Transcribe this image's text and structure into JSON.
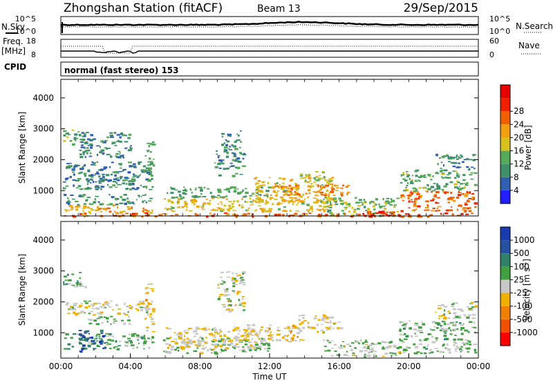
{
  "header": {
    "station": "Zhongshan Station (fitACF)",
    "beam": "Beam 13",
    "date": "29/Sep/2015"
  },
  "noise_panel": {
    "left_label": "N.Sky",
    "right_label": "N.Search",
    "left_ticks": [
      "10^5",
      "10^0"
    ],
    "right_ticks": [
      "10^5",
      "10^0"
    ]
  },
  "freq_panel": {
    "left_label_1": "Freq.",
    "left_label_2": "[MHz]",
    "right_label": "Nave",
    "left_ticks": [
      "18",
      "8"
    ],
    "right_ticks": [
      "60",
      "0"
    ]
  },
  "cpid": {
    "label": "CPID",
    "text": "normal (fast stereo) 153"
  },
  "colors": {
    "power": [
      "#1f1fff",
      "#2f5fb0",
      "#3f8f6a",
      "#56a85a",
      "#d8c020",
      "#f0a010",
      "#f06000",
      "#f02000",
      "#e80000"
    ],
    "velocity": [
      "#ff0000",
      "#f05000",
      "#f08000",
      "#f0b000",
      "#c8c8c8",
      "#40a040",
      "#30806a",
      "#2850a0",
      "#1a3ab0"
    ]
  },
  "chart_data": [
    {
      "type": "heatmap",
      "name": "Power",
      "ylabel": "Slant Range [km]",
      "xlabel": "",
      "yticks": [
        "1000",
        "2000",
        "3000",
        "4000"
      ],
      "ylim": [
        180,
        4600
      ],
      "xlim": [
        0,
        24
      ],
      "colorbar": {
        "label": "Power [dB]",
        "ticks": [
          "4",
          "8",
          "12",
          "16",
          "20",
          "24",
          "28"
        ],
        "range": [
          0,
          30
        ]
      },
      "blobs": [
        {
          "x0": 0.1,
          "x1": 5.3,
          "y0": 300,
          "y1": 560,
          "v": 18
        },
        {
          "x0": 0.1,
          "x1": 5.2,
          "y0": 560,
          "y1": 900,
          "v": 9
        },
        {
          "x0": 0.1,
          "x1": 5.0,
          "y0": 1050,
          "y1": 1950,
          "v": 8
        },
        {
          "x0": 0.1,
          "x1": 1.5,
          "y0": 2500,
          "y1": 3000,
          "v": 11
        },
        {
          "x0": 1.0,
          "x1": 4.0,
          "y0": 2100,
          "y1": 2900,
          "v": 8
        },
        {
          "x0": 1.5,
          "x1": 4.2,
          "y0": 1300,
          "y1": 1500,
          "v": 9
        },
        {
          "x0": 4.8,
          "x1": 5.3,
          "y0": 1000,
          "y1": 2700,
          "v": 10
        },
        {
          "x0": 5.8,
          "x1": 15.5,
          "y0": 350,
          "y1": 800,
          "v": 16
        },
        {
          "x0": 6.0,
          "x1": 12.0,
          "y0": 800,
          "y1": 1150,
          "v": 10
        },
        {
          "x0": 8.8,
          "x1": 10.5,
          "y0": 1500,
          "y1": 2300,
          "v": 8
        },
        {
          "x0": 9.2,
          "x1": 10.3,
          "y0": 2300,
          "y1": 3000,
          "v": 8
        },
        {
          "x0": 11.0,
          "x1": 15.8,
          "y0": 650,
          "y1": 1450,
          "v": 16
        },
        {
          "x0": 13.5,
          "x1": 15.5,
          "y0": 1350,
          "y1": 1650,
          "v": 14
        },
        {
          "x0": 12.0,
          "x1": 16.5,
          "y0": 850,
          "y1": 1200,
          "v": 20
        },
        {
          "x0": 15.0,
          "x1": 19.3,
          "y0": 200,
          "y1": 800,
          "v": 12
        },
        {
          "x0": 17.0,
          "x1": 19.2,
          "y0": 200,
          "y1": 400,
          "v": 24
        },
        {
          "x0": 19.4,
          "x1": 23.8,
          "y0": 350,
          "y1": 1000,
          "v": 22
        },
        {
          "x0": 19.5,
          "x1": 23.8,
          "y0": 1000,
          "y1": 1700,
          "v": 11
        },
        {
          "x0": 21.5,
          "x1": 23.8,
          "y0": 1700,
          "y1": 2200,
          "v": 8
        },
        {
          "x0": 0.1,
          "x1": 23.8,
          "y0": 180,
          "y1": 300,
          "v": 22
        }
      ]
    },
    {
      "type": "heatmap",
      "name": "Velocity",
      "ylabel": "Slant Range [km]",
      "xlabel": "Time UT",
      "xticks": [
        "00:00",
        "04:00",
        "08:00",
        "12:00",
        "16:00",
        "20:00",
        "00:00"
      ],
      "yticks": [
        "1000",
        "2000",
        "3000",
        "4000"
      ],
      "ylim": [
        180,
        4600
      ],
      "xlim": [
        0,
        24
      ],
      "colorbar": {
        "label": "Velocity [m s^-1]",
        "ticks": [
          "-1000",
          "-500",
          "-100",
          "-25",
          "25",
          "100",
          "500",
          "1000"
        ],
        "range": [
          -1500,
          1500
        ]
      },
      "blobs": [
        {
          "x0": 0.1,
          "x1": 5.3,
          "y0": 500,
          "y1": 1000,
          "v": 300
        },
        {
          "x0": 1.0,
          "x1": 2.5,
          "y0": 400,
          "y1": 1100,
          "v": 1000
        },
        {
          "x0": 0.1,
          "x1": 5.0,
          "y0": 1600,
          "y1": 2050,
          "v": 0
        },
        {
          "x0": 0.1,
          "x1": 1.5,
          "y0": 2500,
          "y1": 3000,
          "v": 300
        },
        {
          "x0": 1.5,
          "x1": 4.0,
          "y0": 1300,
          "y1": 1550,
          "v": 150
        },
        {
          "x0": 4.8,
          "x1": 5.3,
          "y0": 1000,
          "y1": 2600,
          "v": -200
        },
        {
          "x0": 5.8,
          "x1": 12.0,
          "y0": 350,
          "y1": 900,
          "v": 150
        },
        {
          "x0": 6.0,
          "x1": 11.5,
          "y0": 500,
          "y1": 1200,
          "v": -150
        },
        {
          "x0": 9.0,
          "x1": 10.5,
          "y0": 1700,
          "y1": 3000,
          "v": 0
        },
        {
          "x0": 10.5,
          "x1": 14.0,
          "y0": 700,
          "y1": 1300,
          "v": -200
        },
        {
          "x0": 13.5,
          "x1": 16.0,
          "y0": 1000,
          "y1": 1600,
          "v": -120
        },
        {
          "x0": 15.0,
          "x1": 19.5,
          "y0": 250,
          "y1": 800,
          "v": 120
        },
        {
          "x0": 19.4,
          "x1": 23.8,
          "y0": 350,
          "y1": 1400,
          "v": 200
        },
        {
          "x0": 21.5,
          "x1": 23.8,
          "y0": 1450,
          "y1": 2000,
          "v": 0
        }
      ]
    }
  ]
}
